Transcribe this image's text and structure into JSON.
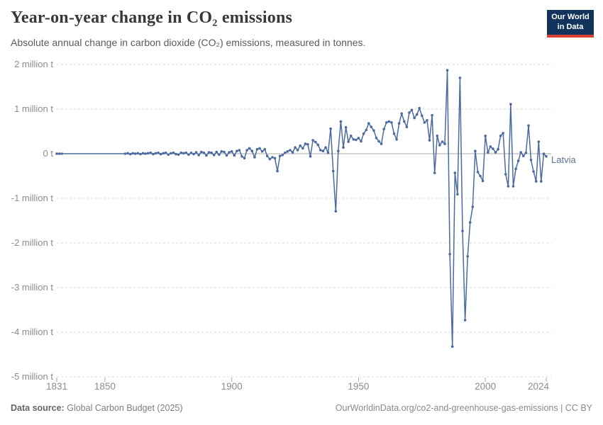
{
  "header": {
    "title": "Year-on-year change in CO₂ emissions",
    "subtitle": "Absolute annual change in carbon dioxide (CO₂) emissions, measured in tonnes."
  },
  "logo": {
    "line1": "Our World",
    "line2": "in Data",
    "bg_color": "#12335b",
    "accent_color": "#d8412f"
  },
  "footer": {
    "source_label": "Data source:",
    "source": "Global Carbon Budget (2025)",
    "citation": "OurWorldinData.org/co2-and-greenhouse-gas-emissions | CC BY"
  },
  "colors": {
    "line": "#4c6a9f",
    "entity_label": "#587394",
    "grid": "#d9d9d9",
    "zero_line": "#a8a8a8",
    "axis_text": "#8c8c8c"
  },
  "chart_data": {
    "type": "line",
    "title": "Year-on-year change in CO₂ emissions",
    "subtitle": "Absolute annual change in carbon dioxide (CO₂) emissions, measured in tonnes.",
    "unit": "million t",
    "xlim": [
      1831,
      2024
    ],
    "ylim": [
      -5,
      2
    ],
    "grid": "horizontal-dashed",
    "legend_position": "line-end-label",
    "x_ticks": [
      {
        "v": 1831,
        "label": "1831"
      },
      {
        "v": 1850,
        "label": "1850"
      },
      {
        "v": 1900,
        "label": "1900"
      },
      {
        "v": 1950,
        "label": "1950"
      },
      {
        "v": 2000,
        "label": "2000"
      },
      {
        "v": 2024,
        "label": "2024"
      }
    ],
    "y_ticks": [
      {
        "v": 2,
        "label": "2 million t"
      },
      {
        "v": 1,
        "label": "1 million t"
      },
      {
        "v": 0,
        "label": "0 t"
      },
      {
        "v": -1,
        "label": "-1 million t"
      },
      {
        "v": -2,
        "label": "-2 million t"
      },
      {
        "v": -3,
        "label": "-3 million t"
      },
      {
        "v": -4,
        "label": "-4 million t"
      },
      {
        "v": -5,
        "label": "-5 million t"
      }
    ],
    "series": [
      {
        "name": "Latvia",
        "color": "#4c6a9f",
        "points": [
          [
            1831,
            0
          ],
          [
            1832,
            0
          ],
          [
            1833,
            0
          ],
          [
            1858,
            0
          ],
          [
            1859,
            0.01
          ],
          [
            1860,
            -0.01
          ],
          [
            1861,
            0.01
          ],
          [
            1862,
            0
          ],
          [
            1863,
            0.01
          ],
          [
            1864,
            -0.01
          ],
          [
            1865,
            0.01
          ],
          [
            1866,
            0
          ],
          [
            1867,
            0.01
          ],
          [
            1868,
            0.02
          ],
          [
            1869,
            -0.01
          ],
          [
            1870,
            0.01
          ],
          [
            1871,
            0.02
          ],
          [
            1872,
            -0.01
          ],
          [
            1873,
            0.01
          ],
          [
            1874,
            0.02
          ],
          [
            1875,
            -0.02
          ],
          [
            1876,
            0.01
          ],
          [
            1877,
            0.02
          ],
          [
            1878,
            -0.01
          ],
          [
            1879,
            -0.02
          ],
          [
            1880,
            0.02
          ],
          [
            1881,
            0.01
          ],
          [
            1882,
            0.02
          ],
          [
            1883,
            -0.02
          ],
          [
            1884,
            0.02
          ],
          [
            1885,
            -0.01
          ],
          [
            1886,
            0.03
          ],
          [
            1887,
            -0.03
          ],
          [
            1888,
            0.04
          ],
          [
            1889,
            0.02
          ],
          [
            1890,
            -0.04
          ],
          [
            1891,
            0.03
          ],
          [
            1892,
            0.02
          ],
          [
            1893,
            -0.03
          ],
          [
            1894,
            0.04
          ],
          [
            1895,
            -0.02
          ],
          [
            1896,
            0.05
          ],
          [
            1897,
            0.04
          ],
          [
            1898,
            -0.04
          ],
          [
            1899,
            0.03
          ],
          [
            1900,
            0.05
          ],
          [
            1901,
            -0.04
          ],
          [
            1902,
            0.06
          ],
          [
            1903,
            0.08
          ],
          [
            1904,
            -0.06
          ],
          [
            1905,
            -0.1
          ],
          [
            1906,
            0.08
          ],
          [
            1907,
            0.12
          ],
          [
            1908,
            0.06
          ],
          [
            1909,
            -0.08
          ],
          [
            1910,
            0.1
          ],
          [
            1911,
            0.12
          ],
          [
            1912,
            0.05
          ],
          [
            1913,
            0.1
          ],
          [
            1914,
            -0.05
          ],
          [
            1915,
            -0.12
          ],
          [
            1916,
            -0.08
          ],
          [
            1917,
            -0.1
          ],
          [
            1918,
            -0.39
          ],
          [
            1919,
            -0.05
          ],
          [
            1920,
            -0.03
          ],
          [
            1921,
            0.02
          ],
          [
            1922,
            0.05
          ],
          [
            1923,
            0.08
          ],
          [
            1924,
            0.03
          ],
          [
            1925,
            0.14
          ],
          [
            1926,
            0.08
          ],
          [
            1927,
            0.18
          ],
          [
            1928,
            0.12
          ],
          [
            1929,
            0.22
          ],
          [
            1930,
            0.21
          ],
          [
            1931,
            -0.06
          ],
          [
            1932,
            0.3
          ],
          [
            1933,
            0.26
          ],
          [
            1934,
            0.2
          ],
          [
            1935,
            0.08
          ],
          [
            1936,
            0.06
          ],
          [
            1937,
            0.14
          ],
          [
            1938,
            0.02
          ],
          [
            1939,
            0.56
          ],
          [
            1940,
            -0.39
          ],
          [
            1941,
            -1.29
          ],
          [
            1942,
            0.06
          ],
          [
            1943,
            0.72
          ],
          [
            1944,
            0.14
          ],
          [
            1945,
            0.59
          ],
          [
            1946,
            0.27
          ],
          [
            1947,
            0.4
          ],
          [
            1948,
            0.32
          ],
          [
            1949,
            0.31
          ],
          [
            1950,
            0.35
          ],
          [
            1951,
            0.28
          ],
          [
            1952,
            0.45
          ],
          [
            1953,
            0.53
          ],
          [
            1954,
            0.68
          ],
          [
            1955,
            0.6
          ],
          [
            1956,
            0.52
          ],
          [
            1957,
            0.35
          ],
          [
            1958,
            0.28
          ],
          [
            1959,
            0.22
          ],
          [
            1960,
            0.55
          ],
          [
            1961,
            0.7
          ],
          [
            1962,
            0.72
          ],
          [
            1963,
            0.7
          ],
          [
            1964,
            0.45
          ],
          [
            1965,
            0.32
          ],
          [
            1966,
            0.68
          ],
          [
            1967,
            0.9
          ],
          [
            1968,
            0.72
          ],
          [
            1969,
            0.6
          ],
          [
            1970,
            0.92
          ],
          [
            1971,
            0.98
          ],
          [
            1972,
            0.8
          ],
          [
            1973,
            0.88
          ],
          [
            1974,
            1.02
          ],
          [
            1975,
            0.85
          ],
          [
            1976,
            0.7
          ],
          [
            1977,
            0.75
          ],
          [
            1978,
            0.3
          ],
          [
            1979,
            0.86
          ],
          [
            1980,
            -0.43
          ],
          [
            1981,
            0.4
          ],
          [
            1982,
            0.19
          ],
          [
            1983,
            0.27
          ],
          [
            1984,
            0.22
          ],
          [
            1985,
            1.87
          ],
          [
            1986,
            -2.25
          ],
          [
            1987,
            -4.32
          ],
          [
            1988,
            -0.43
          ],
          [
            1989,
            -0.91
          ],
          [
            1990,
            1.7
          ],
          [
            1991,
            -1.73
          ],
          [
            1992,
            -3.73
          ],
          [
            1993,
            -2.3
          ],
          [
            1994,
            -1.54
          ],
          [
            1995,
            -1.19
          ],
          [
            1996,
            0.06
          ],
          [
            1997,
            -0.41
          ],
          [
            1998,
            -0.5
          ],
          [
            1999,
            -0.61
          ],
          [
            2000,
            0.4
          ],
          [
            2001,
            0.03
          ],
          [
            2002,
            0.16
          ],
          [
            2003,
            0.11
          ],
          [
            2004,
            0.03
          ],
          [
            2005,
            0.1
          ],
          [
            2006,
            0.4
          ],
          [
            2007,
            0.46
          ],
          [
            2008,
            -0.46
          ],
          [
            2009,
            -0.73
          ],
          [
            2010,
            1.11
          ],
          [
            2011,
            -0.73
          ],
          [
            2012,
            -0.34
          ],
          [
            2013,
            -0.16
          ],
          [
            2014,
            0.03
          ],
          [
            2015,
            -0.05
          ],
          [
            2016,
            0.02
          ],
          [
            2017,
            0.63
          ],
          [
            2018,
            -0.14
          ],
          [
            2019,
            -0.4
          ],
          [
            2020,
            -0.62
          ],
          [
            2021,
            0.27
          ],
          [
            2022,
            -0.62
          ],
          [
            2023,
            0
          ],
          [
            2024,
            -0.06
          ]
        ]
      }
    ]
  }
}
